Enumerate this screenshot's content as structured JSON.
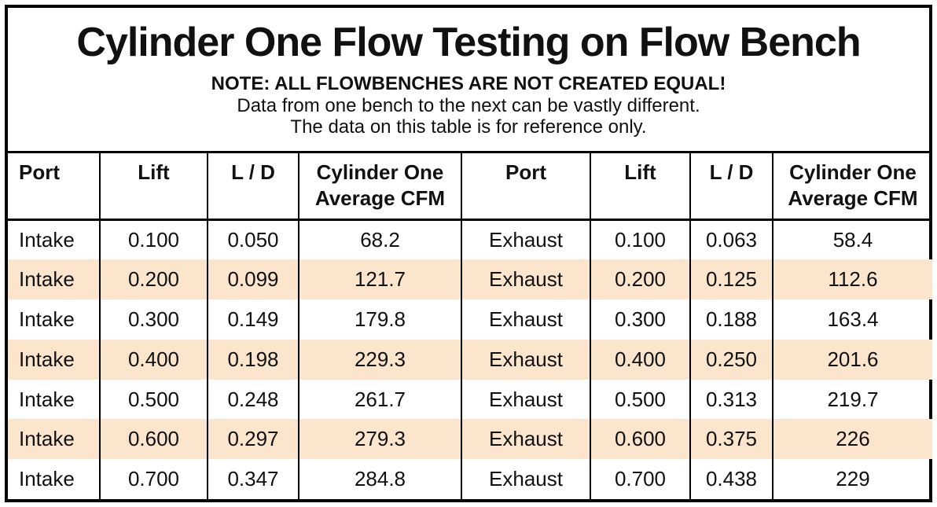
{
  "title": "Cylinder One Flow Testing on Flow Bench",
  "note": {
    "line1": "NOTE: ALL FLOWBENCHES ARE NOT CREATED EQUAL!",
    "line2": "Data from one bench to the next can be vastly different.",
    "line3": "The data on this table is for reference only."
  },
  "colors": {
    "stripe": "#FBE5CD",
    "border": "#000000",
    "text": "#111111",
    "background": "#FFFFFF"
  },
  "table": {
    "columns": [
      "Port",
      "Lift",
      "L / D",
      "Cylinder One Average CFM",
      "Port",
      "Lift",
      "L / D",
      "Cylinder One Average CFM"
    ],
    "rows": [
      [
        "Intake",
        "0.100",
        "0.050",
        "68.2",
        "Exhaust",
        "0.100",
        "0.063",
        "58.4"
      ],
      [
        "Intake",
        "0.200",
        "0.099",
        "121.7",
        "Exhaust",
        "0.200",
        "0.125",
        "112.6"
      ],
      [
        "Intake",
        "0.300",
        "0.149",
        "179.8",
        "Exhaust",
        "0.300",
        "0.188",
        "163.4"
      ],
      [
        "Intake",
        "0.400",
        "0.198",
        "229.3",
        "Exhaust",
        "0.400",
        "0.250",
        "201.6"
      ],
      [
        "Intake",
        "0.500",
        "0.248",
        "261.7",
        "Exhaust",
        "0.500",
        "0.313",
        "219.7"
      ],
      [
        "Intake",
        "0.600",
        "0.297",
        "279.3",
        "Exhaust",
        "0.600",
        "0.375",
        "226"
      ],
      [
        "Intake",
        "0.700",
        "0.347",
        "284.8",
        "Exhaust",
        "0.700",
        "0.438",
        "229"
      ]
    ]
  }
}
